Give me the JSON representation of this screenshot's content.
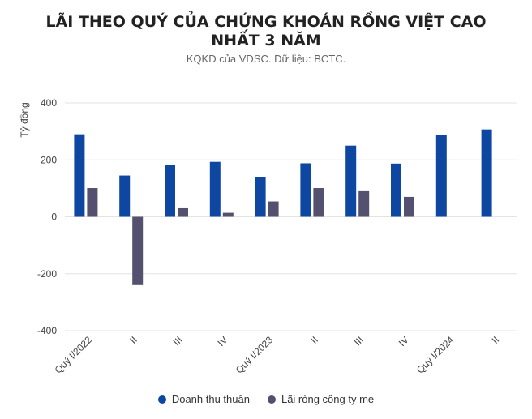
{
  "chart_data": {
    "type": "bar",
    "title": "LÃI THEO QUÝ CỦA CHỨNG KHOÁN RỒNG VIỆT CAO NHẤT 3 NĂM",
    "subtitle": "KQKD của VDSC. Dữ liệu: BCTC.",
    "ylabel": "Tỷ đồng",
    "xlabel": "",
    "ylim": [
      -400,
      400
    ],
    "yticks": [
      400,
      200,
      0,
      -200,
      -400
    ],
    "categories": [
      "Quý I/2022",
      "II",
      "III",
      "IV",
      "Quý I/2023",
      "II",
      "III",
      "IV",
      "Quý I/2024",
      "II"
    ],
    "series": [
      {
        "name": "Doanh thu thuần",
        "color": "#0d47a1",
        "values": [
          290,
          145,
          183,
          193,
          140,
          188,
          250,
          187,
          287,
          307
        ]
      },
      {
        "name": "Lãi ròng công ty mẹ",
        "color": "#54506f",
        "values": [
          101,
          -240,
          30,
          14,
          54,
          101,
          90,
          70,
          null,
          null
        ]
      }
    ],
    "grid": true,
    "legend_position": "bottom"
  }
}
